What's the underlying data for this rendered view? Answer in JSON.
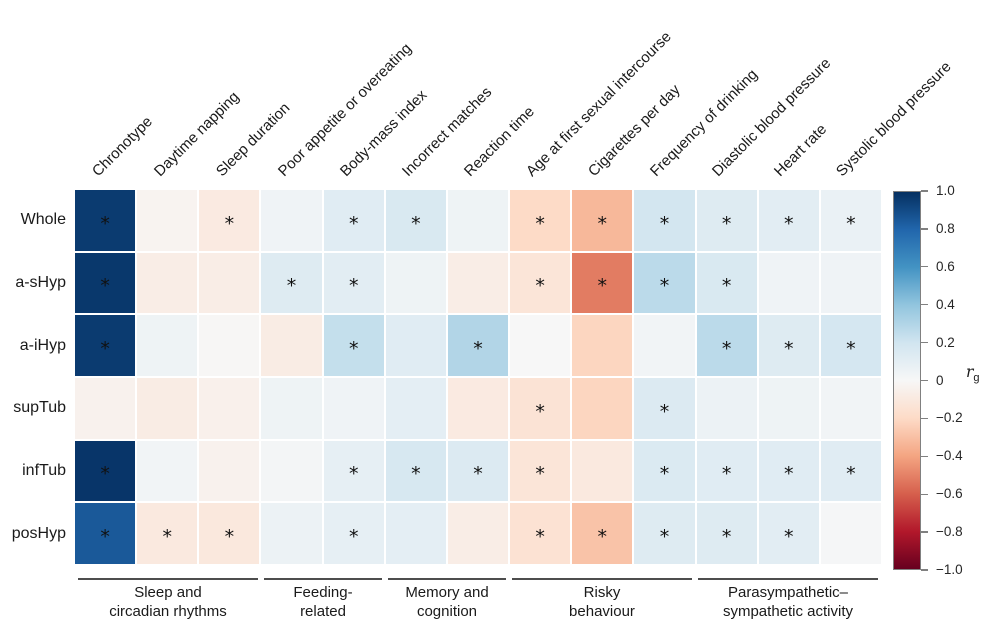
{
  "chart_data": {
    "type": "heatmap",
    "rows": [
      "Whole",
      "a-sHyp",
      "a-iHyp",
      "supTub",
      "infTub",
      "posHyp"
    ],
    "columns": [
      "Chronotype",
      "Daytime napping",
      "Sleep duration",
      "Poor appetite or overeating",
      "Body-mass index",
      "Incorrect matches",
      "Reaction time",
      "Age at first sexual intercourse",
      "Cigarettes per day",
      "Frequency of drinking",
      "Diastolic blood pressure",
      "Heart rate",
      "Systolic blood pressure"
    ],
    "column_groups": [
      {
        "label_line1": "Sleep and",
        "label_line2": "circadian rhythms",
        "start": 0,
        "end": 2
      },
      {
        "label_line1": "Feeding-",
        "label_line2": "related",
        "start": 3,
        "end": 4
      },
      {
        "label_line1": "Memory and",
        "label_line2": "cognition",
        "start": 5,
        "end": 6
      },
      {
        "label_line1": "Risky",
        "label_line2": "behaviour",
        "start": 7,
        "end": 9
      },
      {
        "label_line1": "Parasympathetic–",
        "label_line2": "sympathetic activity",
        "start": 10,
        "end": 12
      }
    ],
    "values": [
      [
        0.96,
        -0.03,
        -0.09,
        0.04,
        0.12,
        0.16,
        0.05,
        -0.2,
        -0.33,
        0.19,
        0.13,
        0.11,
        0.07
      ],
      [
        0.97,
        -0.07,
        -0.07,
        0.13,
        0.11,
        0.05,
        -0.07,
        -0.13,
        -0.52,
        0.27,
        0.16,
        0.04,
        0.04
      ],
      [
        0.96,
        0.05,
        -0.01,
        -0.08,
        0.24,
        0.12,
        0.3,
        0.0,
        -0.22,
        0.03,
        0.27,
        0.13,
        0.18
      ],
      [
        -0.04,
        -0.08,
        -0.05,
        0.05,
        0.04,
        0.1,
        -0.09,
        -0.14,
        -0.22,
        0.14,
        0.06,
        0.05,
        0.03
      ],
      [
        0.98,
        0.03,
        -0.04,
        0.02,
        0.09,
        0.17,
        0.14,
        -0.13,
        -0.1,
        0.15,
        0.12,
        0.12,
        0.12
      ],
      [
        0.85,
        -0.1,
        -0.11,
        0.06,
        0.09,
        0.1,
        -0.07,
        -0.15,
        -0.29,
        0.13,
        0.13,
        0.11,
        0.01
      ]
    ],
    "significant": [
      [
        1,
        0,
        1,
        0,
        1,
        1,
        0,
        1,
        1,
        1,
        1,
        1,
        1
      ],
      [
        1,
        0,
        0,
        1,
        1,
        0,
        0,
        1,
        1,
        1,
        1,
        0,
        0
      ],
      [
        1,
        0,
        0,
        0,
        1,
        0,
        1,
        0,
        0,
        0,
        1,
        1,
        1
      ],
      [
        0,
        0,
        0,
        0,
        0,
        0,
        0,
        1,
        0,
        1,
        0,
        0,
        0
      ],
      [
        1,
        0,
        0,
        0,
        1,
        1,
        1,
        1,
        0,
        1,
        1,
        1,
        1
      ],
      [
        1,
        1,
        1,
        0,
        1,
        0,
        0,
        1,
        1,
        1,
        1,
        1,
        0
      ]
    ],
    "significance_marker": "*",
    "colorbar": {
      "label_main": "r",
      "label_sub": "g",
      "vmin": -1.0,
      "vmax": 1.0,
      "ticks": [
        "1.0",
        "0.8",
        "0.6",
        "0.4",
        "0.2",
        "0",
        "−0.2",
        "−0.4",
        "−0.6",
        "−0.8",
        "−1.0"
      ],
      "palette": [
        {
          "t": -1.0,
          "color": "#67001f"
        },
        {
          "t": -0.8,
          "color": "#b2182b"
        },
        {
          "t": -0.6,
          "color": "#d6604d"
        },
        {
          "t": -0.4,
          "color": "#f4a582"
        },
        {
          "t": -0.2,
          "color": "#fddbc7"
        },
        {
          "t": 0.0,
          "color": "#f7f7f7"
        },
        {
          "t": 0.2,
          "color": "#d1e5f0"
        },
        {
          "t": 0.4,
          "color": "#92c5de"
        },
        {
          "t": 0.6,
          "color": "#4393c3"
        },
        {
          "t": 0.8,
          "color": "#2166ac"
        },
        {
          "t": 1.0,
          "color": "#053061"
        }
      ]
    }
  }
}
